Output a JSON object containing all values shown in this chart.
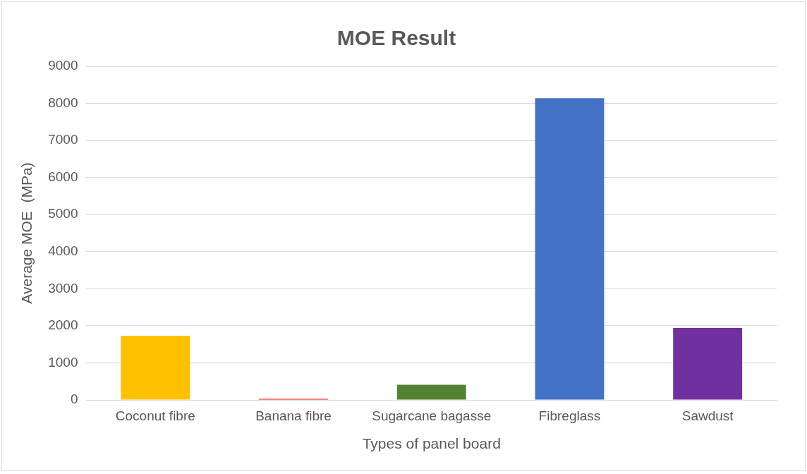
{
  "chart_data": {
    "type": "bar",
    "title": "MOE Result",
    "xlabel": "Types of panel board",
    "ylabel": "Average MOE  (MPa)",
    "categories": [
      "Coconut fibre",
      "Banana fibre",
      "Sugarcane bagasse",
      "Fibreglass",
      "Sawdust"
    ],
    "values": [
      1730,
      30,
      410,
      8140,
      1940
    ],
    "colors": [
      "#ffc000",
      "#ff0000",
      "#548235",
      "#4472c4",
      "#7030a0"
    ],
    "ylim": [
      0,
      9000
    ],
    "yticks": [
      0,
      1000,
      2000,
      3000,
      4000,
      5000,
      6000,
      7000,
      8000,
      9000
    ],
    "grid": "y",
    "legend": false
  }
}
